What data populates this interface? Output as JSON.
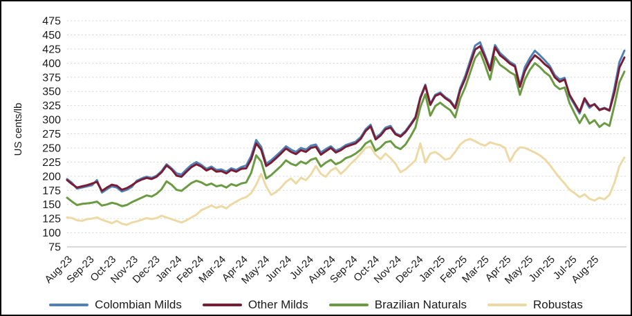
{
  "chart_data": {
    "type": "line",
    "title": "",
    "ylabel": "US cents/lb",
    "ylim": [
      75,
      475
    ],
    "yticks": [
      75,
      100,
      125,
      150,
      175,
      200,
      225,
      250,
      275,
      300,
      325,
      350,
      375,
      400,
      425,
      450,
      475
    ],
    "x_tick_labels": [
      "Aug-23",
      "Sep-23",
      "Oct-23",
      "Nov-23",
      "Dec-23",
      "Jan-24",
      "Feb-24",
      "Mar-24",
      "Apr-24",
      "May-24",
      "Jun-24",
      "Jul-24",
      "Aug-24",
      "Sep-24",
      "Oct-24",
      "Nov-24",
      "Dec-24",
      "Jan-25",
      "Feb-25",
      "Mar-25",
      "Apr-25",
      "May-25",
      "Jun-25",
      "Jul-25",
      "Aug-25"
    ],
    "months_spanned": 25.4,
    "grid": "horizontal-dotted",
    "legend_position": "bottom",
    "sampling": "weekly",
    "series": [
      {
        "name": "Colombian Milds",
        "color": "#4f81b7",
        "values": [
          195,
          188,
          178,
          180,
          182,
          184,
          193,
          171,
          177,
          182,
          180,
          173,
          176,
          181,
          192,
          196,
          199,
          197,
          201,
          209,
          221,
          214,
          205,
          203,
          212,
          220,
          225,
          220,
          213,
          217,
          211,
          212,
          208,
          214,
          211,
          216,
          219,
          236,
          264,
          252,
          222,
          228,
          236,
          244,
          253,
          247,
          243,
          250,
          247,
          254,
          256,
          242,
          248,
          253,
          245,
          249,
          255,
          258,
          261,
          269,
          283,
          291,
          268,
          275,
          286,
          289,
          276,
          272,
          280,
          292,
          305,
          340,
          362,
          328,
          344,
          348,
          340,
          334,
          322,
          356,
          377,
          404,
          431,
          437,
          414,
          391,
          432,
          418,
          410,
          402,
          397,
          361,
          393,
          409,
          422,
          414,
          405,
          395,
          379,
          371,
          374,
          341,
          326,
          311,
          335,
          321,
          328,
          318,
          321,
          317,
          356,
          402,
          422
        ]
      },
      {
        "name": "Other Milds",
        "color": "#7a1c33",
        "values": [
          193,
          186,
          180,
          182,
          184,
          187,
          190,
          174,
          180,
          185,
          183,
          176,
          179,
          184,
          190,
          194,
          197,
          195,
          199,
          207,
          219,
          212,
          201,
          199,
          208,
          216,
          221,
          217,
          210,
          214,
          208,
          209,
          205,
          211,
          208,
          213,
          214,
          230,
          258,
          247,
          218,
          224,
          232,
          240,
          249,
          243,
          239,
          246,
          243,
          250,
          252,
          238,
          244,
          250,
          242,
          246,
          252,
          255,
          258,
          266,
          280,
          288,
          265,
          272,
          283,
          286,
          274,
          270,
          278,
          290,
          303,
          338,
          360,
          326,
          342,
          346,
          338,
          332,
          320,
          352,
          372,
          398,
          424,
          430,
          410,
          387,
          428,
          414,
          407,
          399,
          394,
          358,
          386,
          402,
          414,
          407,
          398,
          391,
          375,
          367,
          371,
          344,
          329,
          314,
          338,
          324,
          327,
          317,
          320,
          316,
          348,
          392,
          410
        ]
      },
      {
        "name": "Brazilian Naturals",
        "color": "#6a9b43",
        "values": [
          162,
          155,
          149,
          151,
          152,
          153,
          155,
          148,
          150,
          153,
          151,
          147,
          149,
          154,
          158,
          162,
          166,
          164,
          169,
          177,
          191,
          185,
          176,
          174,
          181,
          188,
          192,
          189,
          184,
          187,
          182,
          184,
          180,
          186,
          183,
          187,
          189,
          206,
          237,
          226,
          196,
          202,
          210,
          218,
          228,
          222,
          219,
          226,
          222,
          229,
          232,
          217,
          224,
          229,
          221,
          225,
          232,
          235,
          240,
          247,
          258,
          263,
          245,
          251,
          260,
          262,
          252,
          248,
          256,
          270,
          286,
          322,
          345,
          307,
          324,
          330,
          323,
          317,
          304,
          337,
          357,
          383,
          409,
          420,
          397,
          371,
          411,
          397,
          391,
          384,
          379,
          344,
          371,
          388,
          400,
          393,
          384,
          377,
          361,
          354,
          357,
          329,
          311,
          294,
          309,
          293,
          299,
          287,
          294,
          289,
          325,
          366,
          385
        ]
      },
      {
        "name": "Robustas",
        "color": "#edd9a3",
        "values": [
          127,
          126,
          122,
          121,
          124,
          125,
          127,
          123,
          120,
          117,
          121,
          116,
          114,
          118,
          120,
          123,
          126,
          124,
          126,
          130,
          127,
          124,
          121,
          118,
          122,
          127,
          132,
          140,
          144,
          148,
          144,
          147,
          143,
          150,
          155,
          160,
          163,
          170,
          185,
          204,
          182,
          167,
          172,
          180,
          190,
          196,
          187,
          197,
          193,
          203,
          218,
          204,
          199,
          210,
          215,
          204,
          212,
          222,
          230,
          240,
          250,
          252,
          238,
          230,
          240,
          232,
          222,
          207,
          212,
          220,
          228,
          258,
          224,
          240,
          243,
          237,
          229,
          232,
          243,
          256,
          263,
          266,
          262,
          257,
          254,
          260,
          257,
          255,
          250,
          226,
          242,
          251,
          250,
          246,
          242,
          237,
          230,
          220,
          208,
          197,
          187,
          176,
          170,
          163,
          168,
          160,
          157,
          162,
          159,
          167,
          188,
          218,
          233
        ]
      }
    ],
    "colors": {
      "gridline": "#d3d3d3",
      "axis_line": "#c0c0c0",
      "text": "#1a1a1a",
      "background": "#ffffff",
      "border": "#000000"
    }
  }
}
